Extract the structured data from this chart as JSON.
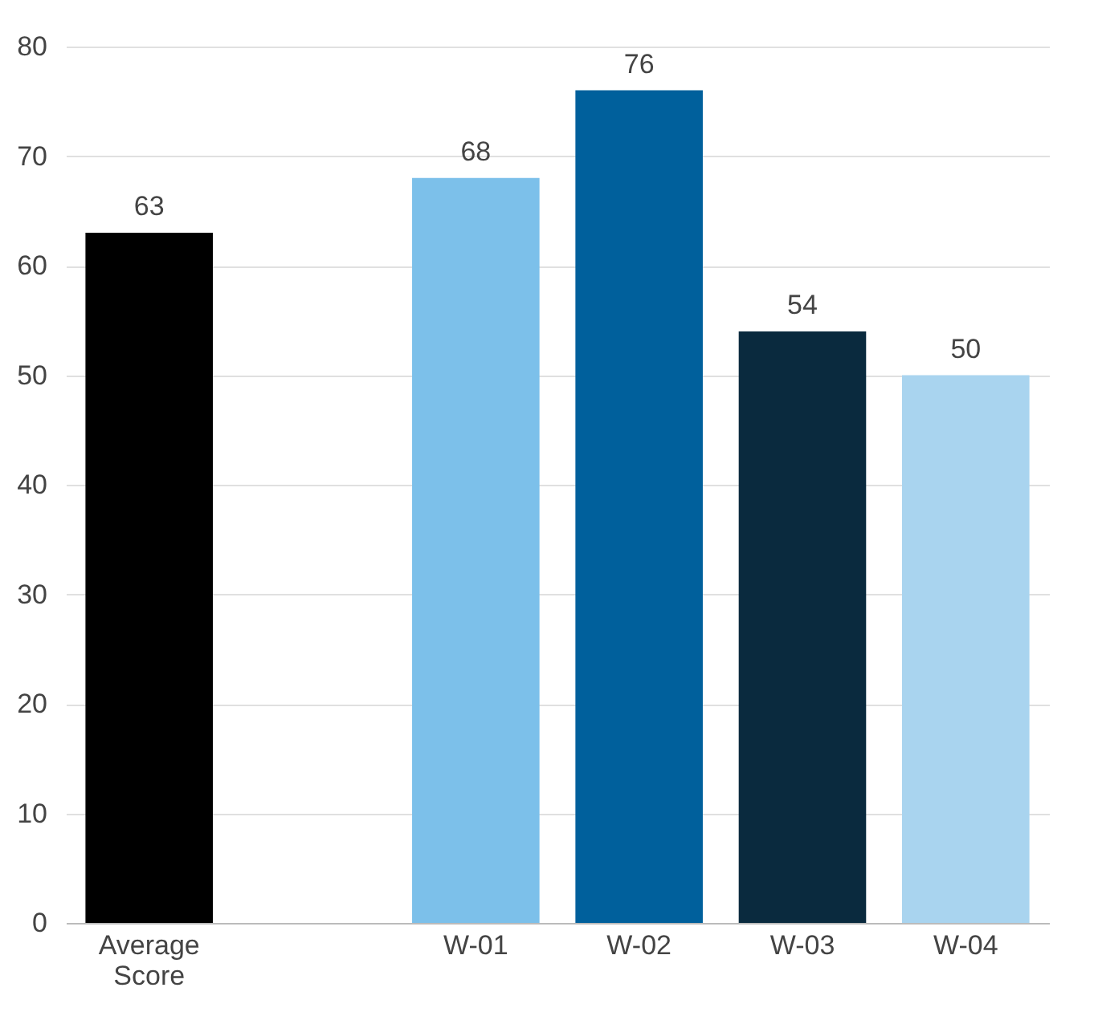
{
  "chart_data": {
    "type": "bar",
    "categories": [
      "Average Score",
      null,
      "W-01",
      "W-02",
      "W-03",
      "W-04"
    ],
    "values": [
      63,
      null,
      68,
      76,
      54,
      50
    ],
    "colors": [
      "#000000",
      "#ffffff",
      "#7cc0ea",
      "#00609c",
      "#0a2a3e",
      "#a9d4ef"
    ],
    "ylim": [
      0,
      80
    ],
    "yticks": [
      0,
      10,
      20,
      30,
      40,
      50,
      60,
      70,
      80
    ],
    "grid": "y",
    "data_labels": true
  }
}
